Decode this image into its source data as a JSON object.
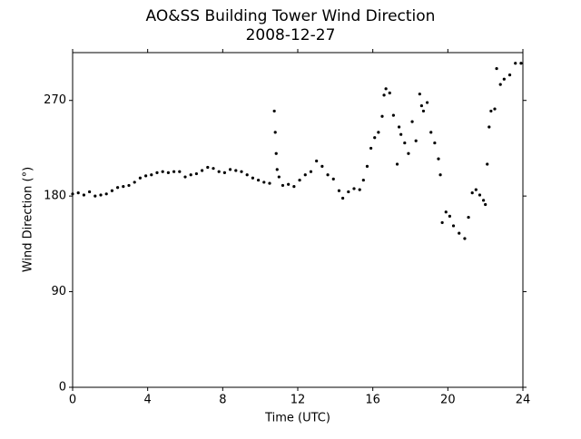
{
  "chart_data": {
    "type": "scatter",
    "title": "AO&SS Building Tower Wind Direction",
    "subtitle": "2008-12-27",
    "x_label": "Time (UTC)",
    "y_label": "Wind Direction (°)",
    "color": "#000000",
    "xlim": [
      0,
      24
    ],
    "xticks": [
      0,
      4,
      8,
      12,
      16,
      20,
      24
    ],
    "ylim": [
      0,
      315
    ],
    "yticks": [
      0,
      90,
      180,
      270
    ],
    "x": [
      0,
      0.3,
      0.6,
      0.9,
      1.2,
      1.5,
      1.8,
      2.1,
      2.4,
      2.7,
      3.0,
      3.3,
      3.6,
      3.9,
      4.2,
      4.5,
      4.8,
      5.1,
      5.4,
      5.7,
      6.0,
      6.3,
      6.6,
      6.9,
      7.2,
      7.5,
      7.8,
      8.1,
      8.4,
      8.7,
      9.0,
      9.3,
      9.6,
      9.9,
      10.2,
      10.5,
      10.75,
      10.8,
      10.85,
      10.9,
      11.0,
      11.2,
      11.5,
      11.8,
      12.1,
      12.4,
      12.7,
      13.0,
      13.3,
      13.6,
      13.9,
      14.2,
      14.4,
      14.7,
      15.0,
      15.3,
      15.5,
      15.7,
      15.9,
      16.1,
      16.3,
      16.5,
      16.6,
      16.7,
      16.9,
      17.1,
      17.3,
      17.4,
      17.5,
      17.7,
      17.9,
      18.1,
      18.3,
      18.5,
      18.6,
      18.7,
      18.9,
      19.1,
      19.3,
      19.5,
      19.6,
      19.7,
      19.9,
      20.1,
      20.3,
      20.6,
      20.9,
      21.1,
      21.3,
      21.5,
      21.7,
      21.9,
      22.0,
      22.1,
      22.2,
      22.3,
      22.5,
      22.6,
      22.8,
      23.0,
      23.3,
      23.6,
      23.9
    ],
    "values": [
      182,
      183,
      181,
      184,
      180,
      181,
      182,
      185,
      188,
      189,
      190,
      193,
      197,
      199,
      200,
      202,
      203,
      202,
      203,
      203,
      198,
      200,
      201,
      204,
      207,
      206,
      203,
      202,
      205,
      204,
      203,
      200,
      197,
      195,
      193,
      192,
      260,
      240,
      220,
      205,
      198,
      190,
      191,
      189,
      195,
      200,
      203,
      213,
      208,
      200,
      196,
      185,
      178,
      184,
      187,
      186,
      195,
      208,
      225,
      235,
      240,
      255,
      275,
      281,
      277,
      256,
      210,
      245,
      238,
      230,
      220,
      250,
      232,
      276,
      265,
      260,
      268,
      240,
      230,
      215,
      200,
      155,
      165,
      161,
      152,
      145,
      140,
      160,
      183,
      186,
      181,
      176,
      172,
      210,
      245,
      260,
      262,
      300,
      285,
      290,
      294,
      305,
      305
    ]
  }
}
